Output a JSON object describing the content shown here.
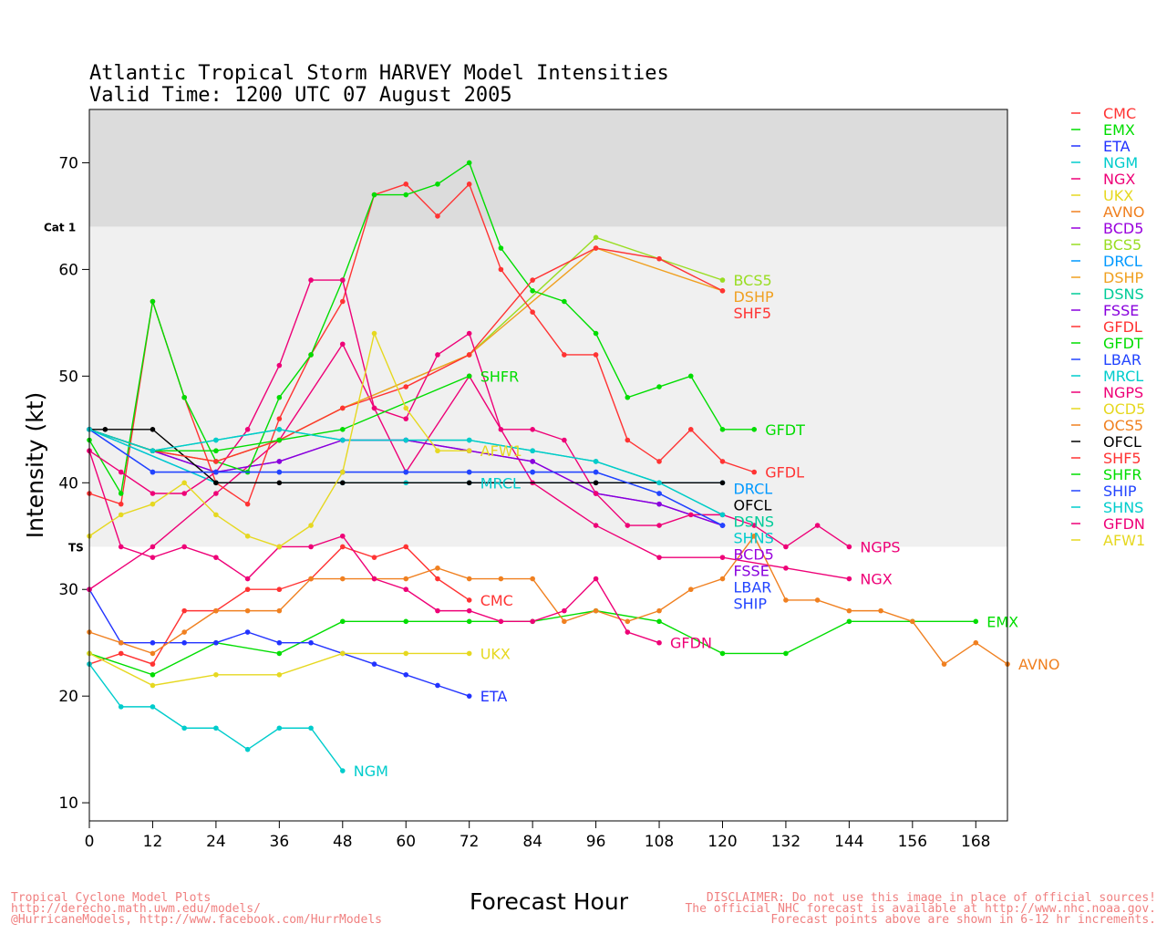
{
  "chart_data": {
    "type": "line",
    "title": "Atlantic Tropical Storm HARVEY Model Intensities",
    "subtitle": "Valid Time: 1200 UTC 07 August 2005",
    "xlabel": "Forecast Hour",
    "ylabel": "Intensity (kt)",
    "xlim": [
      0,
      174
    ],
    "ylim": [
      8.3,
      75
    ],
    "xticks": [
      0,
      12,
      24,
      36,
      48,
      60,
      72,
      84,
      96,
      108,
      120,
      132,
      144,
      156,
      168
    ],
    "yticks": [
      10,
      20,
      30,
      40,
      50,
      60,
      70
    ],
    "bands": [
      {
        "label": "Cat 1",
        "value": 64
      },
      {
        "label": "TS",
        "value": 34
      }
    ],
    "legend_position": "right",
    "series": [
      {
        "name": "CMC",
        "color": "#ff3333",
        "x": [
          0,
          6,
          12,
          18,
          24,
          30,
          36,
          42,
          48,
          54,
          60,
          66,
          72
        ],
        "y": [
          23,
          24,
          23,
          28,
          28,
          30,
          30,
          31,
          34,
          33,
          34,
          31,
          29
        ]
      },
      {
        "name": "EMX",
        "color": "#00dd00",
        "x": [
          0,
          12,
          24,
          36,
          48,
          60,
          72,
          84,
          96,
          108,
          120,
          132,
          144,
          156,
          168
        ],
        "y": [
          24,
          22,
          25,
          24,
          27,
          27,
          27,
          27,
          28,
          27,
          24,
          24,
          27,
          27,
          27
        ]
      },
      {
        "name": "ETA",
        "color": "#2233ff",
        "x": [
          0,
          6,
          12,
          18,
          24,
          30,
          36,
          42,
          48,
          54,
          60,
          66,
          72
        ],
        "y": [
          30,
          25,
          25,
          25,
          25,
          26,
          25,
          25,
          24,
          23,
          22,
          21,
          20
        ]
      },
      {
        "name": "NGM",
        "color": "#00cccc",
        "x": [
          0,
          6,
          12,
          18,
          24,
          30,
          36,
          42,
          48
        ],
        "y": [
          23,
          19,
          19,
          17,
          17,
          15,
          17,
          17,
          13
        ]
      },
      {
        "name": "NGX",
        "color": "#ee0077",
        "x": [
          0,
          12,
          24,
          36,
          48,
          54,
          60,
          72,
          84,
          96,
          108,
          120,
          132,
          144
        ],
        "y": [
          30,
          34,
          39,
          44,
          53,
          47,
          41,
          50,
          40,
          36,
          33,
          33,
          32,
          31
        ]
      },
      {
        "name": "UKX",
        "color": "#e6d820",
        "x": [
          0,
          12,
          24,
          36,
          48,
          60,
          72
        ],
        "y": [
          24,
          21,
          22,
          22,
          24,
          24,
          24
        ]
      },
      {
        "name": "AVNO",
        "color": "#f08020",
        "x": [
          0,
          6,
          12,
          18,
          24,
          30,
          36,
          42,
          48,
          54,
          60,
          66,
          72,
          78,
          84,
          90,
          96,
          102,
          108,
          114,
          120,
          126,
          132,
          138,
          144,
          150,
          156,
          162,
          168,
          174
        ],
        "y": [
          26,
          25,
          24,
          26,
          28,
          28,
          28,
          31,
          31,
          31,
          31,
          32,
          31,
          31,
          31,
          27,
          28,
          27,
          28,
          30,
          31,
          35,
          29,
          29,
          28,
          28,
          27,
          23,
          25,
          23
        ]
      },
      {
        "name": "BCD5",
        "color": "#9900dd",
        "x": [
          0,
          12,
          24,
          36,
          48,
          60,
          72,
          84,
          96,
          108,
          120
        ],
        "y": [
          45,
          43,
          41,
          42,
          44,
          44,
          43,
          42,
          39,
          38,
          36
        ]
      },
      {
        "name": "BCS5",
        "color": "#99dd22",
        "x": [
          0,
          12,
          24,
          36,
          48,
          72,
          96,
          120
        ],
        "y": [
          45,
          43,
          42,
          44,
          47,
          52,
          63,
          59
        ]
      },
      {
        "name": "DRCL",
        "color": "#0099ff",
        "x": [
          0,
          24,
          48,
          72,
          96,
          120
        ],
        "y": [
          45,
          40,
          40,
          40,
          40,
          40
        ]
      },
      {
        "name": "DSHP",
        "color": "#f0a020",
        "x": [
          0,
          12,
          24,
          36,
          48,
          72,
          96,
          120
        ],
        "y": [
          45,
          43,
          42,
          44,
          47,
          52,
          62,
          58
        ]
      },
      {
        "name": "DSNS",
        "color": "#00cc99",
        "x": [
          0,
          12,
          24,
          36,
          48,
          60,
          72,
          84,
          96,
          108,
          120
        ],
        "y": [
          45,
          43,
          44,
          45,
          44,
          44,
          44,
          43,
          42,
          40,
          37
        ]
      },
      {
        "name": "FSSE",
        "color": "#8800dd",
        "x": [
          0,
          12,
          24,
          36,
          48,
          60,
          72,
          84,
          96,
          108,
          120
        ],
        "y": [
          45,
          43,
          41,
          42,
          44,
          44,
          43,
          42,
          39,
          38,
          36
        ]
      },
      {
        "name": "GFDL",
        "color": "#ff3333",
        "x": [
          0,
          6,
          12,
          18,
          24,
          30,
          36,
          42,
          48,
          54,
          60,
          66,
          72,
          78,
          84,
          90,
          96,
          102,
          108,
          114,
          120,
          126
        ],
        "y": [
          39,
          38,
          57,
          48,
          40,
          38,
          46,
          52,
          57,
          67,
          68,
          65,
          68,
          60,
          56,
          52,
          52,
          44,
          42,
          45,
          42,
          41
        ]
      },
      {
        "name": "GFDT",
        "color": "#00dd00",
        "x": [
          0,
          6,
          12,
          18,
          24,
          30,
          36,
          42,
          48,
          54,
          60,
          66,
          72,
          78,
          84,
          90,
          96,
          102,
          108,
          114,
          120,
          126
        ],
        "y": [
          44,
          39,
          57,
          48,
          42,
          41,
          48,
          52,
          59,
          67,
          67,
          68,
          70,
          62,
          58,
          57,
          54,
          48,
          49,
          50,
          45,
          45
        ]
      },
      {
        "name": "LBAR",
        "color": "#2244ff",
        "x": [
          0,
          12,
          24,
          36,
          48,
          60,
          72,
          84,
          96,
          108,
          120
        ],
        "y": [
          45,
          41,
          41,
          41,
          41,
          41,
          41,
          41,
          41,
          39,
          36
        ]
      },
      {
        "name": "MRCL",
        "color": "#00cccc",
        "x": [
          0,
          24,
          48,
          60,
          72
        ],
        "y": [
          45,
          40,
          40,
          40,
          40
        ]
      },
      {
        "name": "NGPS",
        "color": "#ee0077",
        "x": [
          0,
          6,
          12,
          18,
          24,
          30,
          36,
          42,
          48,
          54,
          60,
          66,
          72,
          78,
          84,
          90,
          96,
          102,
          108,
          114,
          120,
          126,
          132,
          138,
          144
        ],
        "y": [
          43,
          41,
          39,
          39,
          41,
          45,
          51,
          59,
          59,
          47,
          46,
          52,
          54,
          45,
          45,
          44,
          39,
          36,
          36,
          37,
          37,
          36,
          34,
          36,
          34
        ]
      },
      {
        "name": "OCD5",
        "color": "#e6d820",
        "x": [],
        "y": []
      },
      {
        "name": "OCS5",
        "color": "#f08020",
        "x": [],
        "y": []
      },
      {
        "name": "OFCL",
        "color": "#000000",
        "x": [
          0,
          3,
          12,
          24,
          36,
          48,
          72,
          96,
          120
        ],
        "y": [
          45,
          45,
          45,
          40,
          40,
          40,
          40,
          40,
          40
        ]
      },
      {
        "name": "SHF5",
        "color": "#ff3333",
        "x": [
          0,
          12,
          24,
          36,
          48,
          60,
          72,
          84,
          96,
          108,
          120
        ],
        "y": [
          45,
          43,
          42,
          44,
          47,
          49,
          52,
          59,
          62,
          61,
          58
        ]
      },
      {
        "name": "SHFR",
        "color": "#00dd00",
        "x": [
          0,
          12,
          24,
          36,
          48,
          72
        ],
        "y": [
          45,
          43,
          43,
          44,
          45,
          50
        ]
      },
      {
        "name": "SHIP",
        "color": "#2244ff",
        "x": [
          0,
          12,
          24,
          36,
          48,
          60,
          72,
          84,
          96,
          108,
          120
        ],
        "y": [
          45,
          41,
          41,
          41,
          41,
          41,
          41,
          41,
          41,
          39,
          36
        ]
      },
      {
        "name": "SHNS",
        "color": "#00cccc",
        "x": [
          0,
          12,
          24,
          36,
          48,
          60,
          72,
          84,
          96,
          108,
          120
        ],
        "y": [
          45,
          43,
          44,
          45,
          44,
          44,
          44,
          43,
          42,
          40,
          37
        ]
      },
      {
        "name": "GFDN",
        "color": "#ee0077",
        "x": [
          0,
          6,
          12,
          18,
          24,
          30,
          36,
          42,
          48,
          54,
          60,
          66,
          72,
          78,
          84,
          90,
          96,
          102,
          108
        ],
        "y": [
          43,
          34,
          33,
          34,
          33,
          31,
          34,
          34,
          35,
          31,
          30,
          28,
          28,
          27,
          27,
          28,
          31,
          26,
          25
        ]
      },
      {
        "name": "AFW1",
        "color": "#e6d820",
        "x": [
          0,
          6,
          12,
          18,
          24,
          30,
          36,
          42,
          48,
          54,
          60,
          66,
          72
        ],
        "y": [
          35,
          37,
          38,
          40,
          37,
          35,
          34,
          36,
          41,
          54,
          47,
          43,
          43
        ]
      }
    ]
  },
  "footer": {
    "left": [
      "Tropical Cyclone Model Plots",
      "http://derecho.math.uwm.edu/models/",
      "@HurricaneModels, http://www.facebook.com/HurrModels"
    ],
    "right": [
      "DISCLAIMER: Do not use this image in place of official sources!",
      "The official NHC forecast is available at http://www.nhc.noaa.gov.",
      "Forecast points above are shown in 6-12 hr increments."
    ]
  }
}
